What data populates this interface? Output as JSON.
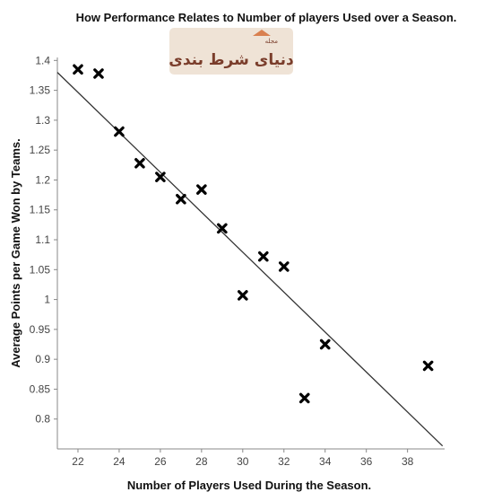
{
  "chart_data": {
    "type": "scatter",
    "title": "How Performance Relates to Number of players Used over a Season.",
    "xlabel": "Number of Players Used During the Season.",
    "ylabel": "Average Points per Game Won by Teams.",
    "xlim": [
      21,
      39.8
    ],
    "ylim": [
      0.75,
      1.405
    ],
    "xticks": [
      22,
      24,
      26,
      28,
      30,
      32,
      34,
      36,
      38
    ],
    "yticks": [
      0.8,
      0.85,
      0.9,
      0.95,
      1,
      1.05,
      1.1,
      1.15,
      1.2,
      1.25,
      1.3,
      1.35,
      1.4
    ],
    "grid": false,
    "points": [
      {
        "x": 22,
        "y": 1.385
      },
      {
        "x": 23,
        "y": 1.378
      },
      {
        "x": 24,
        "y": 1.281
      },
      {
        "x": 25,
        "y": 1.228
      },
      {
        "x": 26,
        "y": 1.205
      },
      {
        "x": 27,
        "y": 1.168
      },
      {
        "x": 28,
        "y": 1.184
      },
      {
        "x": 29,
        "y": 1.119
      },
      {
        "x": 30,
        "y": 1.007
      },
      {
        "x": 31,
        "y": 1.072
      },
      {
        "x": 32,
        "y": 1.055
      },
      {
        "x": 33,
        "y": 0.835
      },
      {
        "x": 34,
        "y": 0.925
      },
      {
        "x": 39,
        "y": 0.889
      }
    ],
    "trendline": {
      "x": [
        21,
        39.7
      ],
      "y": [
        1.38,
        0.755
      ]
    },
    "marker_color": "#000000"
  },
  "watermark": {
    "text": "دنیای شرط بندی",
    "small_text": "مجله",
    "bg_color": "#efe3d6",
    "accent_color": "#d9804f"
  }
}
